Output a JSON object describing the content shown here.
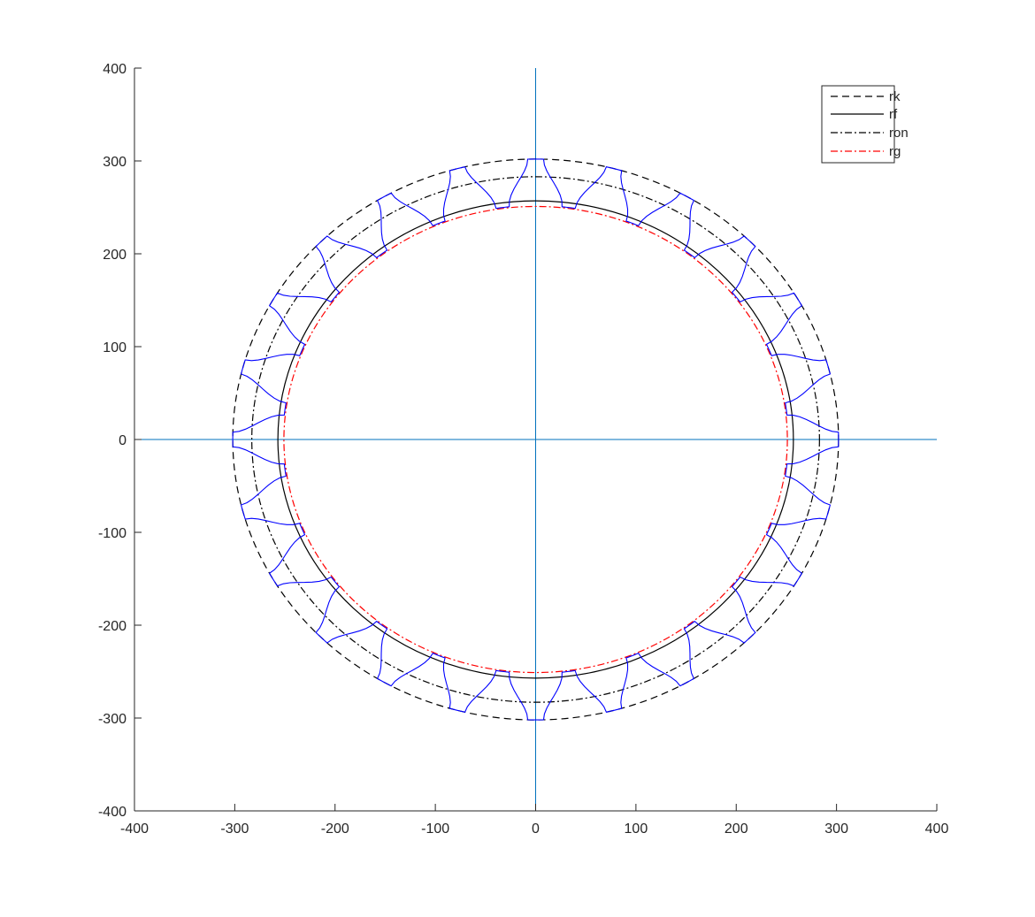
{
  "chart_data": {
    "type": "line",
    "title": "",
    "xlabel": "",
    "ylabel": "",
    "xlim": [
      -400,
      400
    ],
    "ylim": [
      -400,
      400
    ],
    "x_ticks": [
      -400,
      -300,
      -200,
      -100,
      0,
      100,
      200,
      300,
      400
    ],
    "y_ticks": [
      -400,
      -300,
      -200,
      -100,
      0,
      100,
      200,
      300,
      400
    ],
    "x_tick_labels": [
      "-400",
      "-300",
      "-200",
      "-100",
      "0",
      "100",
      "200",
      "300",
      "400"
    ],
    "y_tick_labels": [
      "-400",
      "-300",
      "-200",
      "-100",
      "0",
      "100",
      "200",
      "300",
      "400"
    ],
    "grid": false,
    "reference_lines": {
      "x_zero": 0,
      "y_zero": 0,
      "color": "#0072BD"
    },
    "gear": {
      "teeth": 24,
      "color": "#0000ff",
      "tip_radius": 302,
      "root_radius": 252,
      "base_radius": 260,
      "first_tooth_angle_deg": 0,
      "tip_half_width_deg": 1.5,
      "root_half_width_deg": 6
    },
    "series": [
      {
        "name": "rk",
        "radius": 302,
        "style": "dashed",
        "color": "#000000"
      },
      {
        "name": "rf",
        "radius": 257,
        "style": "solid",
        "color": "#000000"
      },
      {
        "name": "ron",
        "radius": 283,
        "style": "dashdot",
        "color": "#000000"
      },
      {
        "name": "rg",
        "radius": 251,
        "style": "dashdot",
        "color": "#ff0000"
      }
    ],
    "legend": {
      "position": "top-right",
      "entries": [
        "rk",
        "rf",
        "ron",
        "rg"
      ]
    }
  }
}
